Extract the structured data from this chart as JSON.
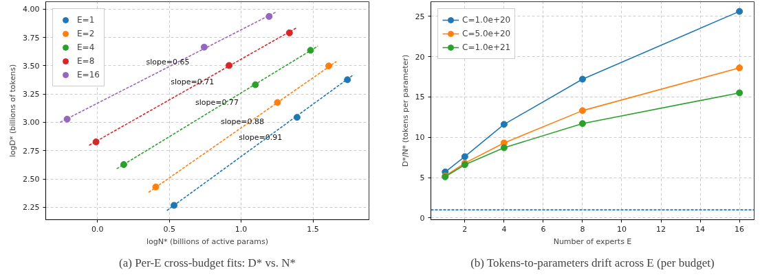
{
  "chart_data": [
    {
      "type": "scatter",
      "title": "(a) Per-E cross-budget fits: D* vs. N*",
      "xlabel": "logN* (billions of active params)",
      "ylabel": "logD* (billions of tokens)",
      "xlim": [
        -0.36,
        1.89
      ],
      "ylim": [
        2.14,
        4.065
      ],
      "xticks": [
        {
          "value": 0,
          "label": "0.0"
        },
        0.5,
        {
          "value": 1,
          "label": "1.0"
        },
        1.5
      ],
      "yticks": [
        2.25,
        {
          "value": 2.5,
          "label": "2.50"
        },
        2.75,
        {
          "value": 3,
          "label": "3.00"
        },
        3.25,
        {
          "value": 3.5,
          "label": "3.50"
        },
        3.75,
        {
          "value": 4,
          "label": "4.00"
        }
      ],
      "grid": true,
      "legend": "top left",
      "marker": "circle",
      "series": [
        {
          "name": "E=1",
          "color": "#1f77b4",
          "x": [
            0.533,
            1.389,
            1.74
          ],
          "values": [
            2.267,
            3.044,
            3.376
          ]
        },
        {
          "name": "E=2",
          "color": "#ff7f0e",
          "x": [
            0.406,
            1.253,
            1.61
          ],
          "values": [
            2.429,
            3.175,
            3.498
          ]
        },
        {
          "name": "E=4",
          "color": "#2ca02c",
          "x": [
            0.183,
            1.099,
            1.483
          ],
          "values": [
            2.627,
            3.332,
            3.636
          ]
        },
        {
          "name": "E=8",
          "color": "#d62728",
          "x": [
            -0.01,
            0.916,
            1.336
          ],
          "values": [
            2.827,
            3.502,
            3.79
          ]
        },
        {
          "name": "E=16",
          "color": "#9467bd",
          "x": [
            -0.211,
            0.743,
            1.195
          ],
          "values": [
            3.028,
            3.664,
            3.935
          ]
        },
        {
          "type": "line",
          "marker": "none",
          "line_style": "dashed",
          "color": "#1f77b4",
          "x": [
            0.483,
            1.783
          ],
          "values": [
            2.221,
            3.421
          ]
        },
        {
          "type": "line",
          "marker": "none",
          "line_style": "dashed",
          "color": "#ff7f0e",
          "x": [
            0.356,
            1.663
          ],
          "values": [
            2.382,
            3.537
          ]
        },
        {
          "type": "line",
          "marker": "none",
          "line_style": "dashed",
          "color": "#2ca02c",
          "x": [
            0.134,
            1.534
          ],
          "values": [
            2.59,
            3.673
          ]
        },
        {
          "type": "line",
          "marker": "none",
          "line_style": "dashed",
          "color": "#d62728",
          "x": [
            -0.058,
            1.385
          ],
          "values": [
            2.797,
            3.834
          ]
        },
        {
          "type": "line",
          "marker": "none",
          "line_style": "dashed",
          "color": "#9467bd",
          "x": [
            -0.26,
            1.247
          ],
          "values": [
            3.0,
            3.977
          ]
        }
      ],
      "annotations": [
        {
          "text": "slope=0.65",
          "x": 0.49,
          "y": 3.486
        },
        {
          "text": "slope=0.71",
          "x": 0.661,
          "y": 3.314
        },
        {
          "text": "slope=0.77",
          "x": 0.832,
          "y": 3.13
        },
        {
          "text": "slope=0.88",
          "x": 1.009,
          "y": 2.959
        },
        {
          "text": "slope=0.91",
          "x": 1.135,
          "y": 2.823
        }
      ]
    },
    {
      "type": "line",
      "title": "(b) Tokens-to-parameters drift across E (per budget)",
      "xlabel": "Number of experts E",
      "ylabel": "D*/N* (tokens per parameter)",
      "x": [
        1,
        2,
        4,
        8,
        16
      ],
      "xlim": [
        0.27,
        16.75
      ],
      "ylim": [
        -0.22,
        26.8
      ],
      "xticks": [
        2,
        4,
        6,
        8,
        10,
        12,
        14,
        16
      ],
      "yticks": [
        0,
        5,
        10,
        15,
        20,
        25
      ],
      "grid": true,
      "legend": "top left",
      "marker": "circle",
      "series": [
        {
          "name": "C=1.0e+20",
          "color": "#1f77b4",
          "values": [
            5.7,
            7.6,
            11.6,
            17.2,
            25.6
          ]
        },
        {
          "name": "C=5.0e+20",
          "color": "#ff7f0e",
          "values": [
            5.2,
            6.8,
            9.3,
            13.3,
            18.6
          ]
        },
        {
          "name": "C=1.0e+21",
          "color": "#2ca02c",
          "values": [
            5.1,
            6.6,
            8.7,
            11.7,
            15.5
          ]
        }
      ],
      "ref_lines": [
        {
          "axis": "y",
          "value": 1,
          "color": "#1f77b4",
          "line_style": "dashed"
        }
      ]
    }
  ]
}
